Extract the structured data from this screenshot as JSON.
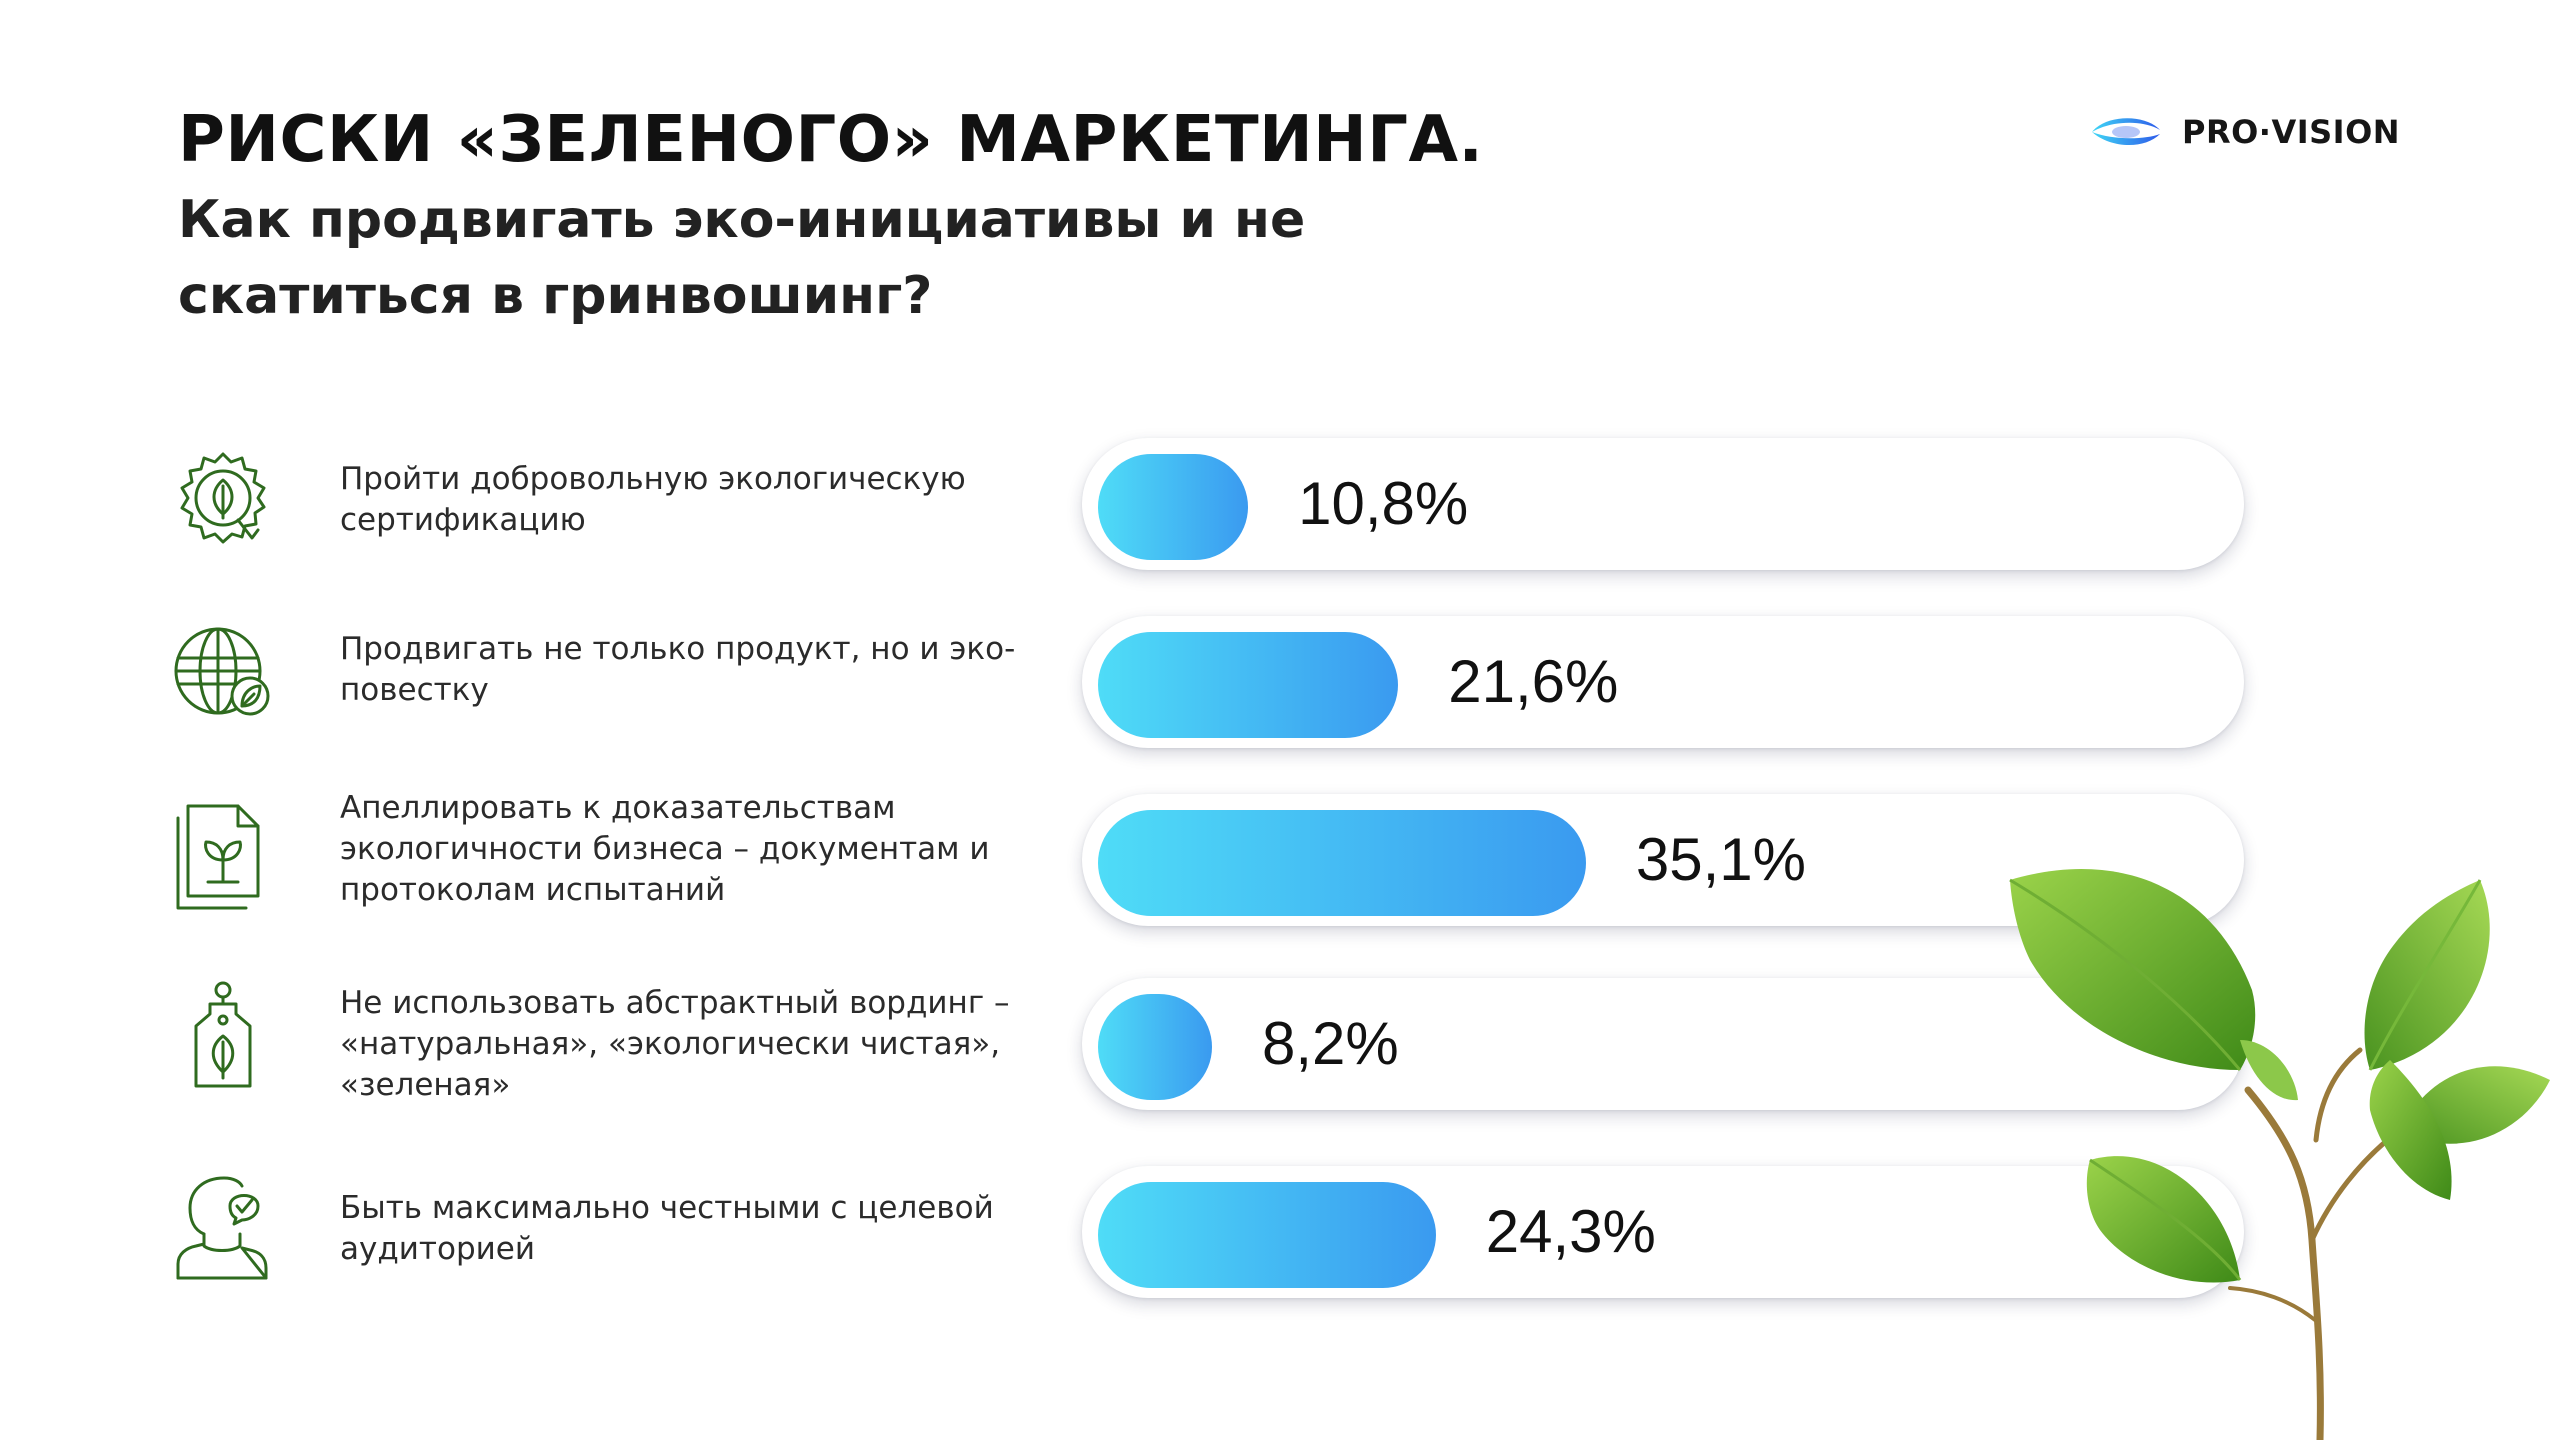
{
  "header": {
    "title": "РИСКИ «ЗЕЛЕНОГО» МАРКЕТИНГА.",
    "subtitle": "Как продвигать эко-инициативы и не скатиться в гринвошинг?"
  },
  "logo": {
    "text": "PRO·VISION",
    "icon": "eye-logo-icon"
  },
  "colors": {
    "bar_start": "#4fdcf7",
    "bar_end": "#3a9af0",
    "icon_green": "#2f6b1f",
    "text": "#1d1d1b"
  },
  "chart_data": {
    "type": "bar",
    "orientation": "horizontal",
    "title": "РИСКИ «ЗЕЛЕНОГО» МАРКЕТИНГА.",
    "xlim": [
      0,
      100
    ],
    "unit": "%",
    "categories": [
      "Пройти добровольную экологическую сертификацию",
      "Продвигать не только продукт, но и эко-повестку",
      "Апеллировать к доказательствам экологичности бизнеса – документам и протоколам испытаний",
      "Не использовать абстрактный вординг – «натуральная», «экологически чистая», «зеленая»",
      "Быть максимально честными с целевой аудиторией"
    ],
    "values": [
      10.8,
      21.6,
      35.1,
      8.2,
      24.3
    ]
  },
  "items": [
    {
      "label": "Пройти добровольную экологическую сертификацию",
      "value_text": "10,8%",
      "icon": "eco-certificate-icon"
    },
    {
      "label": "Продвигать не только продукт, но и эко-повестку",
      "value_text": "21,6%",
      "icon": "eco-globe-icon"
    },
    {
      "label": "Апеллировать к доказательствам экологичности бизнеса – документам и протоколам испытаний",
      "value_text": "35,1%",
      "icon": "eco-documents-icon"
    },
    {
      "label": "Не использовать абстрактный вординг – «натуральная», «экологически чистая», «зеленая»",
      "value_text": "8,2%",
      "icon": "eco-tag-icon"
    },
    {
      "label": "Быть максимально честными с целевой аудиторией",
      "value_text": "24,3%",
      "icon": "honest-person-icon"
    }
  ]
}
